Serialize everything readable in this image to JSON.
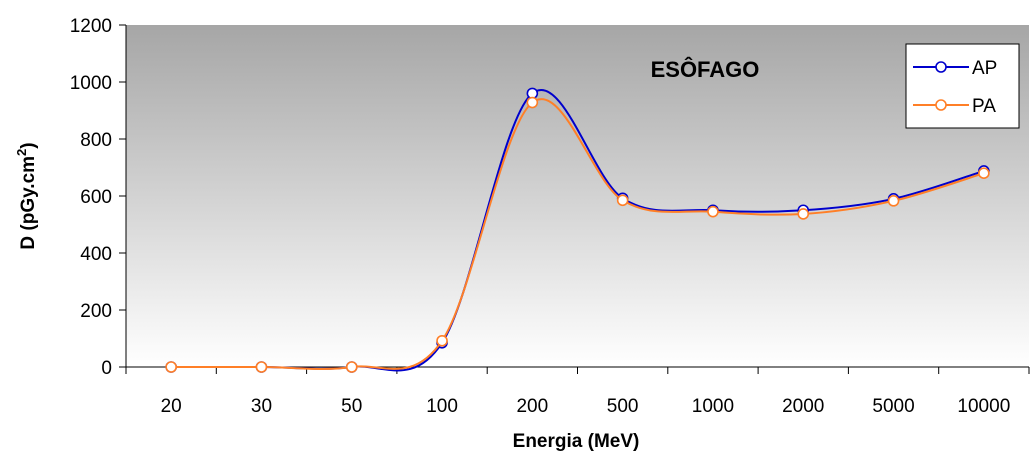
{
  "chart_data": {
    "type": "line",
    "title": "ESÔFAGO",
    "xlabel": "Energia (MeV)",
    "ylabel_main": "D (pGy.cm",
    "ylabel_sup": "2",
    "ylabel_close": ")",
    "categories": [
      "20",
      "30",
      "50",
      "100",
      "200",
      "500",
      "1000",
      "2000",
      "5000",
      "10000"
    ],
    "yticks": [
      "0",
      "200",
      "400",
      "600",
      "800",
      "1000",
      "1200"
    ],
    "ylim": [
      0,
      1200
    ],
    "grid": false,
    "legend_position": "top-right",
    "series": [
      {
        "name": "AP",
        "color": "#0000cc",
        "values": [
          0,
          0,
          0,
          85,
          960,
          592,
          550,
          550,
          590,
          688
        ]
      },
      {
        "name": "PA",
        "color": "#ff7f27",
        "values": [
          0,
          0,
          0,
          92,
          928,
          585,
          545,
          537,
          583,
          680
        ]
      }
    ]
  }
}
